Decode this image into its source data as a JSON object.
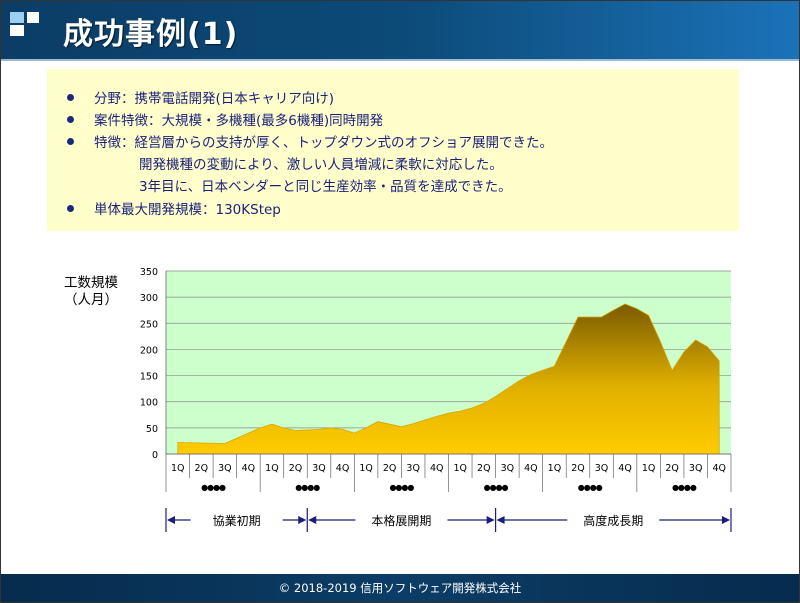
{
  "slide": {
    "title": "成功事例(1)",
    "footer": "© 2018-2019 信用ソフトウェア開発株式会社"
  },
  "info": {
    "lines": [
      "分野：携帯電話開発(日本キャリア向け)",
      "案件特徴：大規模・多機種(最多6機種)同時開発",
      "特徴：経営層からの支持が厚く、トップダウン式のオフショア展開できた。",
      "開発機種の変動により、激しい人員増減に柔軟に対応した。",
      "3年目に、日本ベンダーと同じ生産効率・品質を達成できた。",
      "単体最大開発規模：130KStep"
    ]
  },
  "colors": {
    "header_start": "#0b3d66",
    "header_end": "#1b72b8",
    "info_bg": "#ffffcc",
    "info_text": "#1a1f7a",
    "plot_bg": "#ccffcc",
    "area_top": "#7a5a00",
    "area_bottom": "#ffcc00",
    "arrow": "#1a1f7a"
  },
  "chart_data": {
    "type": "area",
    "ylabel": "工数規模\n（人月）",
    "ylabel_lines": [
      "工数規模",
      "（人月）"
    ],
    "ylim": [
      0,
      350
    ],
    "yticks": [
      0,
      50,
      100,
      150,
      200,
      250,
      300,
      350
    ],
    "grid": true,
    "categories": [
      "1Q",
      "2Q",
      "3Q",
      "4Q",
      "1Q",
      "2Q",
      "3Q",
      "4Q",
      "1Q",
      "2Q",
      "3Q",
      "4Q",
      "1Q",
      "2Q",
      "3Q",
      "4Q",
      "1Q",
      "2Q",
      "3Q",
      "4Q",
      "1Q",
      "2Q",
      "3Q",
      "4Q"
    ],
    "series": [
      {
        "x": [
          0,
          1,
          2,
          3,
          3.5,
          4,
          4.5,
          5,
          6,
          6.5,
          7,
          7.5,
          8,
          8.5,
          9,
          9.5,
          10,
          10.5,
          11,
          11.5,
          12,
          12.5,
          13,
          13.5,
          14,
          14.5,
          15,
          15.5,
          16,
          16.5,
          17,
          17.5,
          18,
          18.5,
          19,
          19.5,
          20,
          20.5,
          21,
          21.5,
          22,
          22.5,
          23
        ],
        "values": [
          22,
          21,
          20,
          40,
          50,
          57,
          50,
          45,
          47,
          50,
          47,
          40,
          50,
          62,
          57,
          52,
          58,
          65,
          72,
          78,
          82,
          88,
          97,
          110,
          125,
          140,
          152,
          160,
          168,
          215,
          262,
          262,
          262,
          275,
          287,
          278,
          265,
          215,
          160,
          195,
          218,
          205,
          178
        ]
      }
    ],
    "year_labels": [
      "●●●●",
      "●●●●",
      "●●●●",
      "●●●●",
      "●●●●",
      "●●●●"
    ],
    "phases": [
      {
        "label": "協業初期",
        "from": 0,
        "to": 6
      },
      {
        "label": "本格展開期",
        "from": 6,
        "to": 14
      },
      {
        "label": "高度成長期",
        "from": 14,
        "to": 24
      }
    ]
  }
}
